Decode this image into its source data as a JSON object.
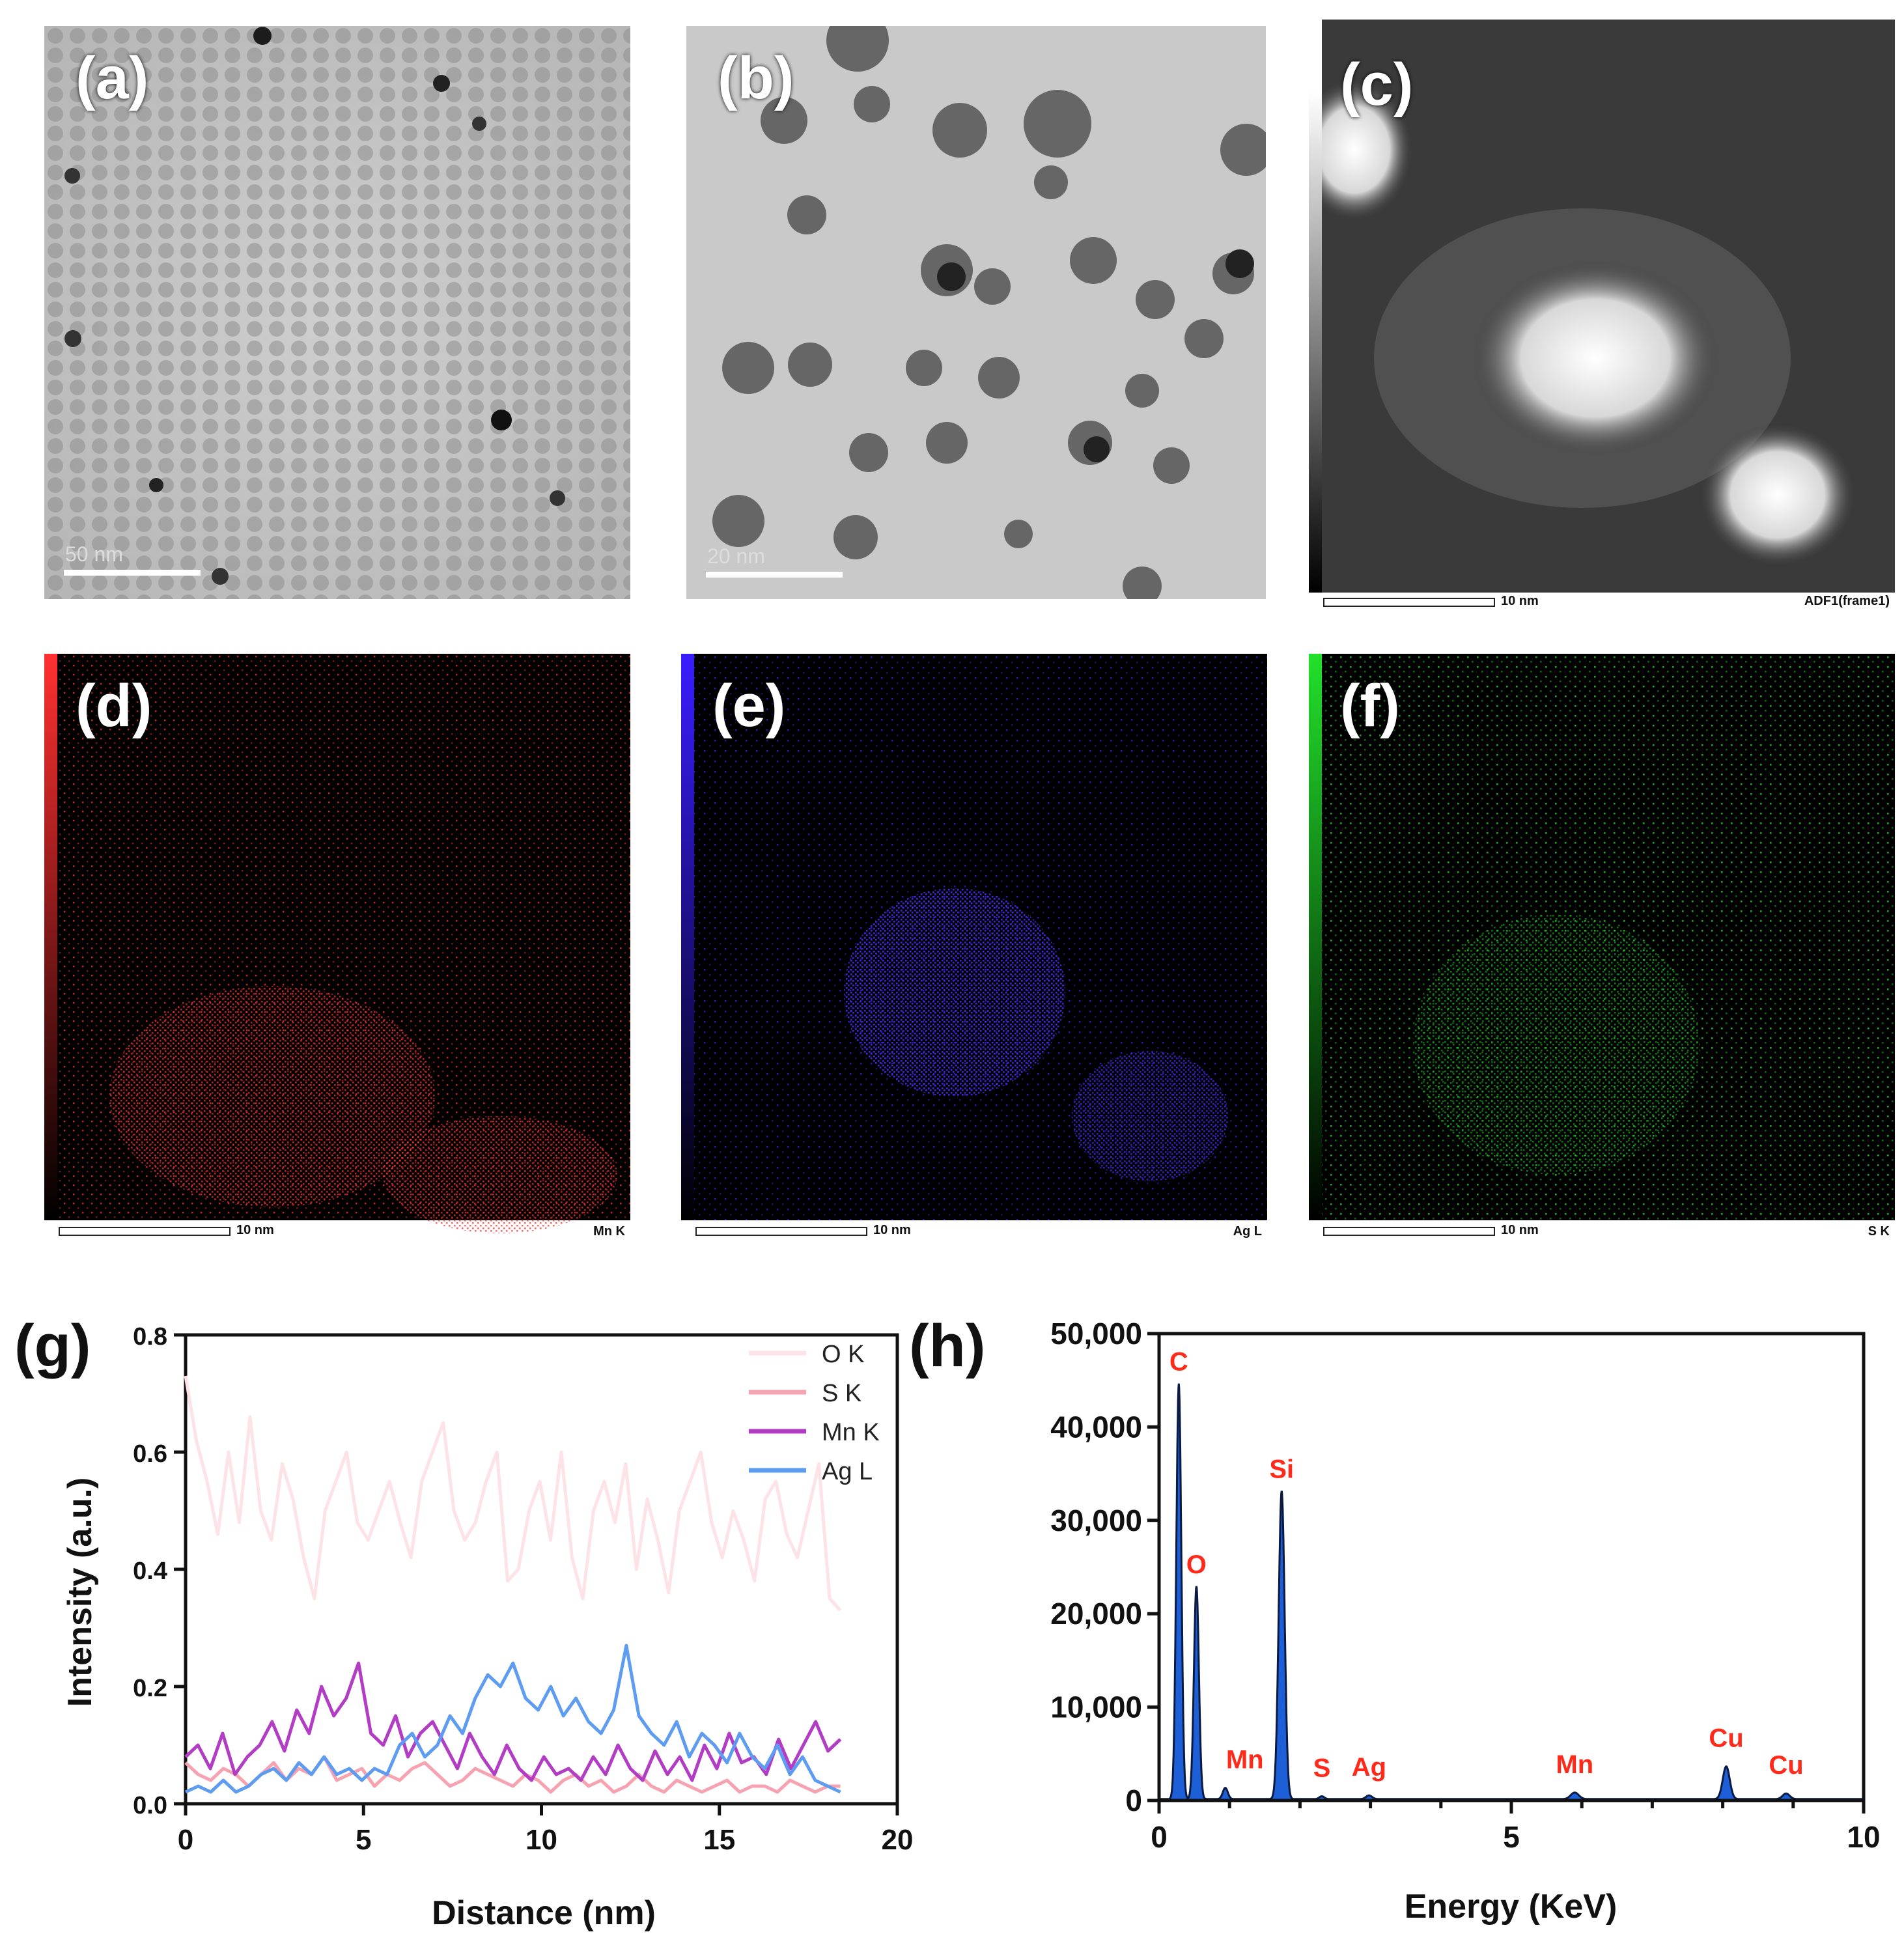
{
  "panels": {
    "a": {
      "label": "(a)",
      "scale": "50 nm"
    },
    "b": {
      "label": "(b)",
      "scale": "20 nm"
    },
    "c": {
      "label": "(c)",
      "scale": "10 nm",
      "footer_right": "ADF1(frame1)"
    },
    "d": {
      "label": "(d)",
      "scale": "10 nm",
      "footer_right": "Mn K",
      "color": "#ff3030"
    },
    "e": {
      "label": "(e)",
      "scale": "10 nm",
      "footer_right": "Ag L",
      "color": "#3a1dff"
    },
    "f": {
      "label": "(f)",
      "scale": "10 nm",
      "footer_right": "S K",
      "color": "#22e02a"
    },
    "g": {
      "label": "(g)"
    },
    "h": {
      "label": "(h)"
    }
  },
  "chart_data": [
    {
      "type": "line",
      "panel": "g",
      "xlabel": "Distance (nm)",
      "ylabel": "Intensity (a.u.)",
      "xlim": [
        0,
        20
      ],
      "ylim": [
        0,
        0.8
      ],
      "xticks": [
        "0",
        "5",
        "10",
        "15",
        "20"
      ],
      "yticks": [
        "0.0",
        "0.2",
        "0.4",
        "0.6",
        "0.8"
      ],
      "legend_position": "top-right",
      "series": [
        {
          "name": "O K",
          "color": "#fde3e8",
          "values": [
            0.73,
            0.62,
            0.55,
            0.46,
            0.6,
            0.48,
            0.66,
            0.5,
            0.45,
            0.58,
            0.52,
            0.42,
            0.35,
            0.5,
            0.55,
            0.6,
            0.48,
            0.45,
            0.5,
            0.55,
            0.48,
            0.42,
            0.55,
            0.6,
            0.65,
            0.5,
            0.45,
            0.48,
            0.55,
            0.6,
            0.38,
            0.4,
            0.5,
            0.55,
            0.45,
            0.6,
            0.42,
            0.35,
            0.5,
            0.55,
            0.48,
            0.58,
            0.4,
            0.52,
            0.45,
            0.36,
            0.5,
            0.55,
            0.6,
            0.48,
            0.42,
            0.5,
            0.45,
            0.38,
            0.52,
            0.55,
            0.46,
            0.42,
            0.5,
            0.58,
            0.35,
            0.33
          ]
        },
        {
          "name": "S K",
          "color": "#f6a2b0",
          "values": [
            0.07,
            0.05,
            0.04,
            0.06,
            0.05,
            0.03,
            0.05,
            0.07,
            0.04,
            0.06,
            0.05,
            0.08,
            0.04,
            0.05,
            0.06,
            0.03,
            0.05,
            0.04,
            0.06,
            0.07,
            0.05,
            0.03,
            0.04,
            0.06,
            0.05,
            0.04,
            0.03,
            0.05,
            0.04,
            0.02,
            0.04,
            0.05,
            0.03,
            0.04,
            0.02,
            0.03,
            0.05,
            0.03,
            0.02,
            0.04,
            0.03,
            0.02,
            0.03,
            0.04,
            0.02,
            0.03,
            0.03,
            0.02,
            0.04,
            0.03,
            0.02,
            0.03,
            0.03
          ]
        },
        {
          "name": "Mn K",
          "color": "#b23cc4",
          "values": [
            0.08,
            0.1,
            0.06,
            0.12,
            0.05,
            0.08,
            0.1,
            0.14,
            0.09,
            0.16,
            0.12,
            0.2,
            0.15,
            0.18,
            0.24,
            0.12,
            0.1,
            0.15,
            0.08,
            0.12,
            0.14,
            0.1,
            0.06,
            0.12,
            0.08,
            0.05,
            0.1,
            0.06,
            0.04,
            0.08,
            0.05,
            0.06,
            0.04,
            0.08,
            0.05,
            0.1,
            0.06,
            0.04,
            0.09,
            0.05,
            0.08,
            0.04,
            0.1,
            0.06,
            0.12,
            0.07,
            0.08,
            0.05,
            0.11,
            0.06,
            0.1,
            0.14,
            0.09,
            0.11
          ]
        },
        {
          "name": "Ag L",
          "color": "#5e9cf2",
          "values": [
            0.02,
            0.03,
            0.02,
            0.04,
            0.02,
            0.03,
            0.05,
            0.06,
            0.04,
            0.07,
            0.05,
            0.08,
            0.05,
            0.06,
            0.04,
            0.06,
            0.05,
            0.1,
            0.12,
            0.08,
            0.1,
            0.15,
            0.12,
            0.18,
            0.22,
            0.2,
            0.24,
            0.18,
            0.16,
            0.2,
            0.15,
            0.18,
            0.14,
            0.12,
            0.16,
            0.27,
            0.15,
            0.12,
            0.1,
            0.14,
            0.08,
            0.12,
            0.1,
            0.07,
            0.12,
            0.08,
            0.06,
            0.1,
            0.05,
            0.08,
            0.04,
            0.03,
            0.02
          ]
        }
      ]
    },
    {
      "type": "area",
      "panel": "h",
      "xlabel": "Energy (KeV)",
      "ylabel": "",
      "xlim": [
        0,
        10
      ],
      "ylim": [
        0,
        50000
      ],
      "xticks": [
        "0",
        "5",
        "10"
      ],
      "yticks": [
        "0",
        "10,000",
        "20,000",
        "30,000",
        "40,000",
        "50,000"
      ],
      "fill_color": "#1d5fd6",
      "peaks": [
        {
          "label": "C",
          "x": 0.28,
          "y": 44500,
          "width": 0.05
        },
        {
          "label": "O",
          "x": 0.53,
          "y": 22800,
          "width": 0.05
        },
        {
          "label": "Mn",
          "x": 0.94,
          "y": 1200,
          "width": 0.05
        },
        {
          "label": "Si",
          "x": 1.74,
          "y": 33000,
          "width": 0.06
        },
        {
          "label": "S",
          "x": 2.31,
          "y": 300,
          "width": 0.05
        },
        {
          "label": "Ag",
          "x": 2.98,
          "y": 400,
          "width": 0.06
        },
        {
          "label": "Mn",
          "x": 5.9,
          "y": 700,
          "width": 0.08
        },
        {
          "label": "Cu",
          "x": 8.05,
          "y": 3500,
          "width": 0.07
        },
        {
          "label": "Cu",
          "x": 8.9,
          "y": 600,
          "width": 0.07
        }
      ],
      "label_color": "#ff2a1a"
    }
  ]
}
